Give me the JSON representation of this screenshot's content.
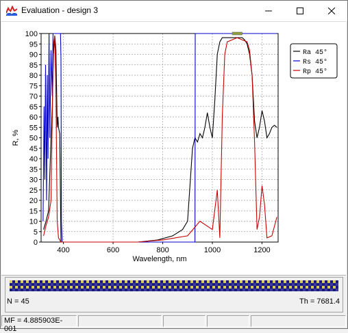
{
  "window": {
    "title": "Evaluation - design 3",
    "buttons": [
      "minimize",
      "maximize",
      "close"
    ]
  },
  "chart_data": {
    "type": "line",
    "xlabel": "Wavelength, nm",
    "ylabel": "R, %",
    "xlim": [
      310,
      1265
    ],
    "ylim": [
      0,
      100
    ],
    "xticks": [
      "400",
      "600",
      "800",
      "1000",
      "1200"
    ],
    "yticks": [
      "0",
      "5",
      "10",
      "15",
      "20",
      "25",
      "30",
      "35",
      "40",
      "45",
      "50",
      "55",
      "60",
      "65",
      "70",
      "75",
      "80",
      "85",
      "90",
      "95",
      "100"
    ],
    "grid": true,
    "legend_position": "top-right",
    "series": [
      {
        "name": "Ra 45°",
        "color": "#000000",
        "x": [
          320,
          330,
          340,
          350,
          355,
          360,
          365,
          370,
          375,
          378,
          380,
          385,
          390,
          700,
          780,
          840,
          880,
          900,
          920,
          930,
          940,
          950,
          960,
          970,
          980,
          990,
          1000,
          1010,
          1020,
          1030,
          1040,
          1050,
          1060,
          1080,
          1100,
          1120,
          1130,
          1140,
          1150,
          1160,
          1170,
          1180,
          1190,
          1200,
          1210,
          1220,
          1230,
          1240,
          1250,
          1260
        ],
        "y": [
          6,
          10,
          15,
          50,
          65,
          90,
          99,
          92,
          55,
          60,
          55,
          52,
          0,
          0,
          1,
          3,
          6,
          10,
          45,
          50,
          48,
          52,
          50,
          55,
          62,
          55,
          50,
          68,
          90,
          96,
          98,
          98,
          98,
          98,
          98,
          98,
          97,
          95,
          90,
          80,
          58,
          50,
          55,
          63,
          58,
          50,
          52,
          55,
          56,
          55
        ]
      },
      {
        "name": "Rs 45°",
        "color": "#0000c8",
        "x": [
          318,
          322,
          325,
          328,
          332,
          335,
          338,
          342,
          345,
          350,
          355,
          358,
          360,
          362,
          365,
          367,
          368,
          372,
          380,
          385,
          388,
          390,
          392,
          395,
          700,
          930,
          931,
          935,
          1260
        ],
        "y": [
          10,
          65,
          30,
          85,
          20,
          80,
          40,
          100,
          50,
          92,
          70,
          100,
          100,
          100,
          100,
          100,
          100,
          100,
          100,
          100,
          100,
          88,
          10,
          0,
          0,
          0,
          100,
          100,
          100
        ]
      },
      {
        "name": "Rp 45°",
        "color": "#c80000",
        "x": [
          320,
          330,
          340,
          350,
          355,
          360,
          365,
          370,
          375,
          380,
          385,
          390,
          700,
          800,
          900,
          950,
          1000,
          1020,
          1030,
          1040,
          1050,
          1060,
          1080,
          1100,
          1120,
          1140,
          1150,
          1160,
          1170,
          1180,
          1190,
          1200,
          1210,
          1220,
          1240,
          1260
        ],
        "y": [
          3,
          8,
          12,
          20,
          60,
          95,
          99,
          70,
          10,
          2,
          1,
          0,
          0,
          1,
          3,
          10,
          6,
          25,
          2,
          60,
          90,
          96,
          97,
          98,
          97,
          96,
          92,
          80,
          48,
          6,
          12,
          27,
          18,
          2,
          3,
          12
        ]
      }
    ]
  },
  "panel": {
    "n_label": "N = 45",
    "th_label": "Th = 7681.4"
  },
  "statusbar": {
    "mf_label": "MF = 4.885903E-001"
  },
  "colors": {
    "ra": "#000000",
    "rs": "#0000c8",
    "rp": "#c80000",
    "grid": "#a0a0a0",
    "stripe_dark": "#1a1a7a",
    "stripe_light": "#d8c860"
  }
}
